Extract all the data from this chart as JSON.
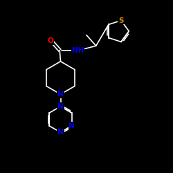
{
  "background_color": "#000000",
  "bond_color": "#ffffff",
  "atom_colors": {
    "S": "#cc8800",
    "O": "#ff0000",
    "N": "#0000ee",
    "NH": "#0000ee",
    "C": "#ffffff"
  },
  "figsize": [
    2.5,
    2.5
  ],
  "dpi": 100,
  "xlim": [
    0,
    10
  ],
  "ylim": [
    0,
    10
  ]
}
